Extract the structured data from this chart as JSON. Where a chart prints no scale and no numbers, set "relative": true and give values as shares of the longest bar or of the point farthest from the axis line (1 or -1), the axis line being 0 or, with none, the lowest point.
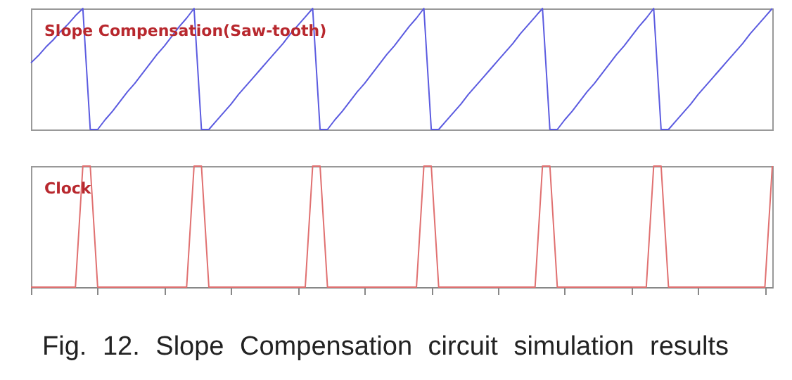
{
  "chart_data": [
    {
      "type": "line",
      "title": "Slope Compensation(Saw-tooth)",
      "relative": true,
      "tick_labels": false,
      "grid": false,
      "legend": false,
      "categories": [
        null,
        null,
        null,
        null,
        null,
        null,
        null,
        null,
        null,
        null,
        null,
        null,
        null,
        null,
        null,
        null,
        null,
        null,
        null,
        null,
        null,
        null,
        null,
        null,
        null,
        null,
        null,
        null,
        null,
        null,
        null,
        null,
        null,
        null,
        null,
        null,
        null,
        null,
        null,
        null,
        null,
        null,
        null,
        null,
        null,
        null,
        null,
        null,
        null,
        null,
        null,
        null,
        null,
        null,
        null,
        null,
        null,
        null,
        null,
        null,
        null,
        null,
        null,
        null,
        null,
        null,
        null,
        null,
        null,
        null,
        null,
        null,
        null,
        null,
        null,
        null,
        null,
        null,
        null,
        null,
        null,
        null,
        null,
        null,
        null,
        null,
        null,
        null,
        null,
        null,
        null,
        null,
        null,
        null,
        null,
        null,
        null,
        null,
        null,
        null,
        null
      ],
      "series": [
        {
          "color": "#5b5be0",
          "values": [
            0.55,
            0.61,
            0.68,
            0.74,
            0.81,
            0.87,
            0.94,
            1,
            0,
            0,
            0.08,
            0.15,
            0.23,
            0.31,
            0.38,
            0.46,
            0.54,
            0.62,
            0.69,
            0.77,
            0.85,
            0.92,
            1,
            0,
            0,
            0.07,
            0.14,
            0.21,
            0.29,
            0.36,
            0.43,
            0.5,
            0.57,
            0.64,
            0.71,
            0.79,
            0.86,
            0.93,
            1,
            0,
            0,
            0.08,
            0.15,
            0.23,
            0.31,
            0.38,
            0.46,
            0.54,
            0.62,
            0.69,
            0.77,
            0.85,
            0.92,
            1,
            0,
            0,
            0.07,
            0.14,
            0.21,
            0.29,
            0.36,
            0.43,
            0.5,
            0.57,
            0.64,
            0.71,
            0.79,
            0.86,
            0.93,
            1,
            0,
            0,
            0.08,
            0.15,
            0.23,
            0.31,
            0.38,
            0.46,
            0.54,
            0.62,
            0.69,
            0.77,
            0.85,
            0.92,
            1,
            0,
            0,
            0.07,
            0.14,
            0.21,
            0.29,
            0.36,
            0.43,
            0.5,
            0.57,
            0.64,
            0.71,
            0.79,
            0.86,
            0.93,
            1
          ]
        }
      ]
    },
    {
      "type": "line",
      "title": "Clock",
      "relative": true,
      "tick_labels": false,
      "grid": false,
      "legend": false,
      "annotations": [
        "Fig. 12. Slope Compensation circuit simulation results"
      ],
      "categories": [
        null,
        null,
        null,
        null,
        null,
        null,
        null,
        null,
        null,
        null,
        null,
        null,
        null,
        null,
        null,
        null,
        null,
        null,
        null,
        null,
        null,
        null,
        null,
        null,
        null,
        null,
        null,
        null,
        null,
        null,
        null,
        null,
        null,
        null,
        null,
        null,
        null,
        null,
        null,
        null,
        null,
        null,
        null,
        null,
        null,
        null,
        null,
        null,
        null,
        null,
        null,
        null,
        null,
        null,
        null,
        null,
        null,
        null,
        null,
        null,
        null,
        null,
        null,
        null,
        null,
        null,
        null,
        null,
        null,
        null,
        null,
        null,
        null,
        null,
        null,
        null,
        null,
        null,
        null,
        null,
        null,
        null,
        null,
        null,
        null,
        null,
        null,
        null,
        null,
        null,
        null,
        null,
        null,
        null,
        null,
        null,
        null,
        null,
        null,
        null,
        null
      ],
      "series": [
        {
          "color": "#e07070",
          "values": [
            0,
            0,
            0,
            0,
            0,
            0,
            0,
            1,
            1,
            0,
            0,
            0,
            0,
            0,
            0,
            0,
            0,
            0,
            0,
            0,
            0,
            0,
            1,
            1,
            0,
            0,
            0,
            0,
            0,
            0,
            0,
            0,
            0,
            0,
            0,
            0,
            0,
            0,
            1,
            1,
            0,
            0,
            0,
            0,
            0,
            0,
            0,
            0,
            0,
            0,
            0,
            0,
            0,
            1,
            1,
            0,
            0,
            0,
            0,
            0,
            0,
            0,
            0,
            0,
            0,
            0,
            0,
            0,
            0,
            1,
            1,
            0,
            0,
            0,
            0,
            0,
            0,
            0,
            0,
            0,
            0,
            0,
            0,
            0,
            1,
            1,
            0,
            0,
            0,
            0,
            0,
            0,
            0,
            0,
            0,
            0,
            0,
            0,
            0,
            0,
            1
          ]
        }
      ]
    }
  ]
}
